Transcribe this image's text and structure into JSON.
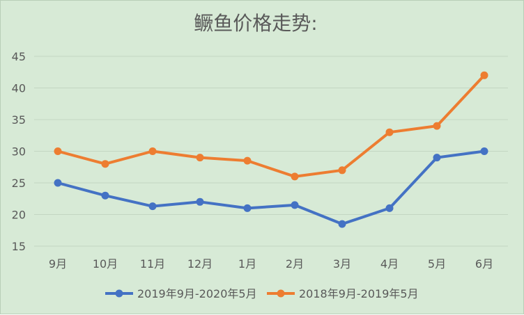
{
  "chart_data": {
    "type": "line",
    "title": "鳜鱼价格走势:",
    "categories": [
      "9月",
      "10月",
      "11月",
      "12月",
      "1月",
      "2月",
      "3月",
      "4月",
      "5月",
      "6月"
    ],
    "series": [
      {
        "name": "2019年9月-2020年5月",
        "color": "#4472c4",
        "values": [
          25,
          23,
          21.3,
          22,
          21,
          21.5,
          18.5,
          21,
          29,
          30
        ]
      },
      {
        "name": "2018年9月-2019年5月",
        "color": "#ed7d31",
        "values": [
          30,
          28,
          30,
          29,
          28.5,
          26,
          27,
          33,
          34,
          42
        ]
      }
    ],
    "ylim": [
      15,
      45
    ],
    "yticks": [
      15,
      20,
      25,
      30,
      35,
      40,
      45
    ],
    "grid": true,
    "legend": "bottom"
  }
}
